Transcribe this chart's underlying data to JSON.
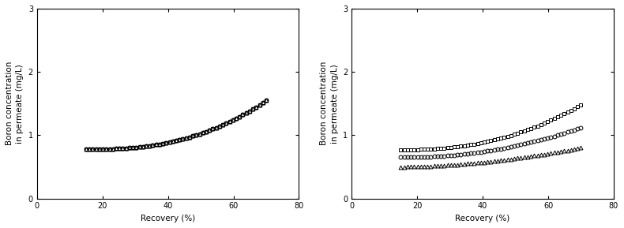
{
  "xlim": [
    0,
    80
  ],
  "ylim": [
    0,
    3
  ],
  "xticks": [
    0,
    20,
    40,
    60,
    80
  ],
  "yticks": [
    0,
    1,
    2,
    3
  ],
  "xlabel": "Recovery (%)",
  "ylabel": "Boron concentration\nin permeate (mg/L)",
  "recovery_range": [
    15,
    70
  ],
  "n_points": 55,
  "cake_start": 0.78,
  "cake_end": 1.55,
  "cake_power": 2.5,
  "scale_sq_start": 0.77,
  "scale_sq_end": 1.48,
  "scale_sq_power": 2.3,
  "scale_circ_start": 0.65,
  "scale_circ_end": 1.12,
  "scale_circ_power": 2.1,
  "scale_tri_start": 0.5,
  "scale_tri_end": 0.8,
  "scale_tri_power": 1.8,
  "marker_size": 3.5,
  "line_color": "#000000",
  "bg_color": "#ffffff",
  "tick_labelsize": 7,
  "label_fontsize": 7.5,
  "fig_width": 7.9,
  "fig_height": 2.89,
  "dpi": 100
}
